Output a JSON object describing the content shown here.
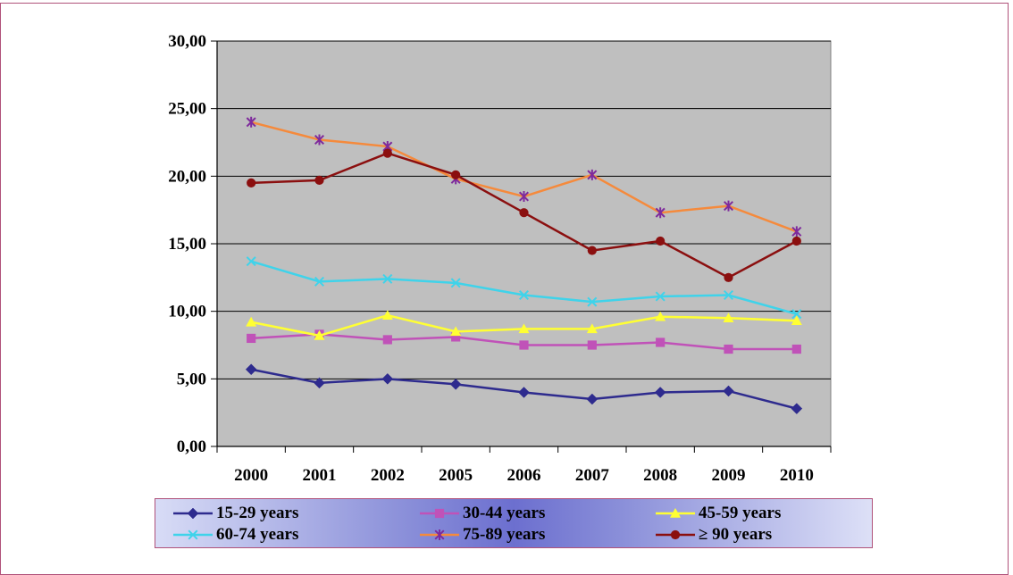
{
  "chart_data": {
    "type": "line",
    "categories": [
      "2000",
      "2001",
      "2002",
      "2005",
      "2006",
      "2007",
      "2008",
      "2009",
      "2010"
    ],
    "y_tick_labels": [
      "0,00",
      "5,00",
      "10,00",
      "15,00",
      "20,00",
      "25,00",
      "30,00"
    ],
    "ylim": [
      0,
      30
    ],
    "y_step": 5,
    "grid": true,
    "plot_background": "#bfbfbf",
    "legend_position": "bottom",
    "series": [
      {
        "name": "15-29 years",
        "color": "#2e2b8e",
        "marker": "diamond",
        "values": [
          5.7,
          4.7,
          5.0,
          4.6,
          4.0,
          3.5,
          4.0,
          4.1,
          2.8
        ]
      },
      {
        "name": "30-44 years",
        "color": "#c052b8",
        "marker": "square",
        "values": [
          8.0,
          8.3,
          7.9,
          8.1,
          7.5,
          7.5,
          7.7,
          7.2,
          7.2
        ]
      },
      {
        "name": "45-59 years",
        "color": "#ffff33",
        "marker": "triangle",
        "values": [
          9.2,
          8.2,
          9.7,
          8.5,
          8.7,
          8.7,
          9.6,
          9.5,
          9.3
        ]
      },
      {
        "name": "60-74 years",
        "color": "#3fd3ea",
        "marker": "x",
        "values": [
          13.7,
          12.2,
          12.4,
          12.1,
          11.2,
          10.7,
          11.1,
          11.2,
          9.8
        ]
      },
      {
        "name": "75-89 years",
        "color": "#f58a3c",
        "marker": "asterisk",
        "values": [
          24.0,
          22.7,
          22.2,
          19.8,
          18.5,
          20.1,
          17.3,
          17.8,
          15.9
        ]
      },
      {
        "name": "≥ 90 years",
        "color": "#8b0f0f",
        "marker": "circle",
        "values": [
          19.5,
          19.7,
          21.7,
          20.1,
          17.3,
          14.5,
          15.2,
          12.5,
          15.2
        ]
      }
    ]
  }
}
